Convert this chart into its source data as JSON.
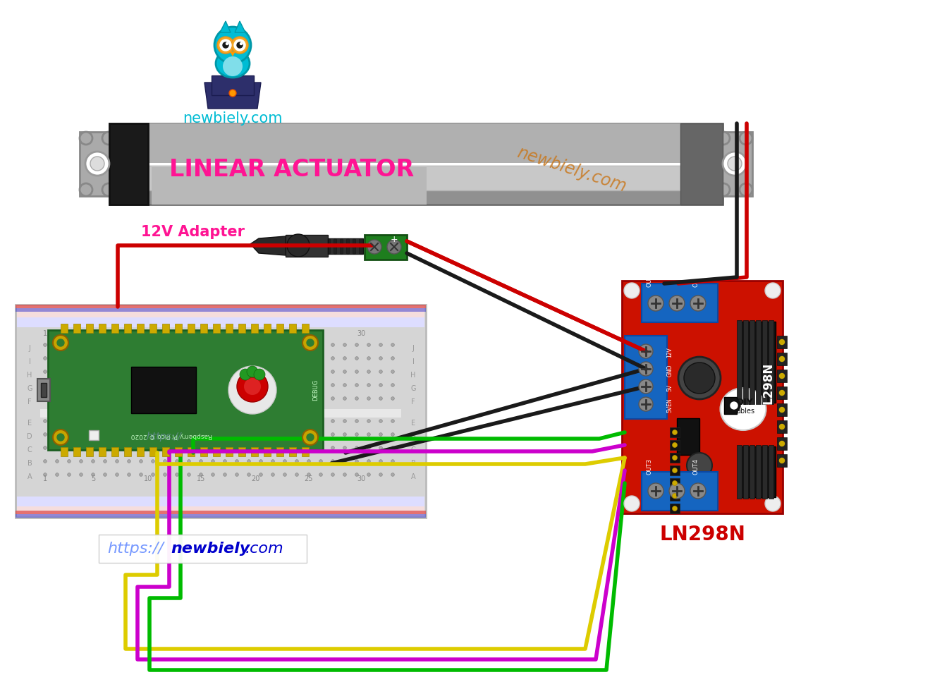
{
  "bg_color": "#ffffff",
  "newbiely_text": "newbiely.com",
  "newbiely_color": "#00bcd4",
  "watermark_color": "#c8781e",
  "linear_actuator_label": "LINEAR ACTUATOR",
  "linear_actuator_color": "#ff1493",
  "adapter_label": "12V Adapter",
  "adapter_color": "#ff1493",
  "l298n_label": "LN298N",
  "l298n_text_color": "#cc0000",
  "board_color": "#cc1100",
  "connector_blue": "#1565c0",
  "wire_red": "#cc0000",
  "wire_black": "#1a1a1a",
  "wire_green": "#00bb00",
  "wire_yellow": "#ddcc00",
  "wire_magenta": "#cc00cc",
  "pico_color": "#2e7d32",
  "pico_gold": "#ccaa00"
}
